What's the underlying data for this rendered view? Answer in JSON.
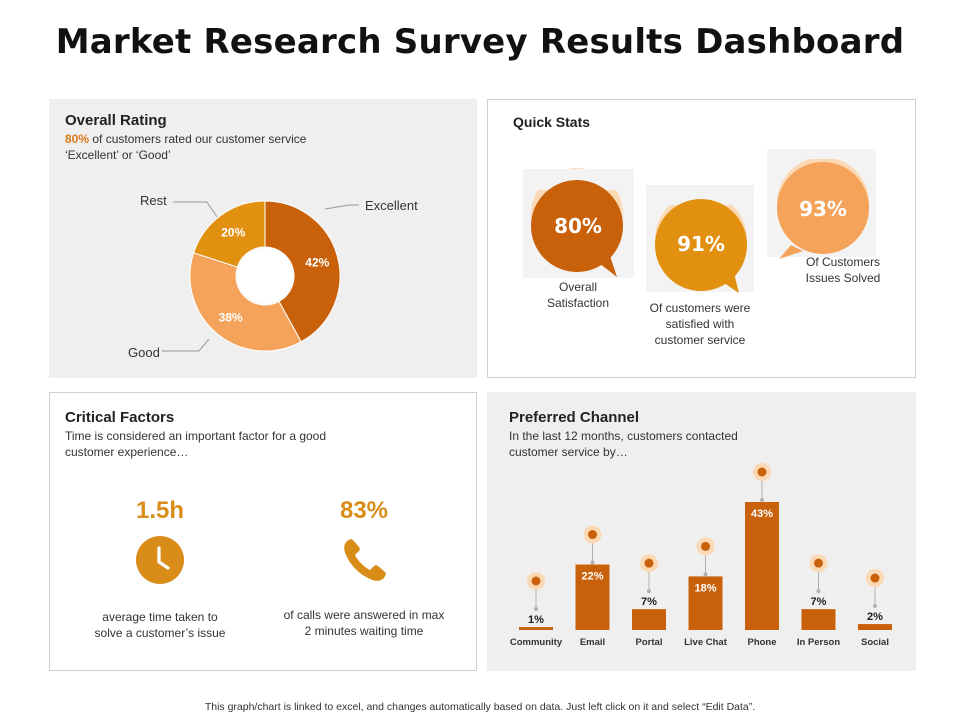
{
  "title": "Market Research Survey Results Dashboard",
  "colors": {
    "dark_orange": "#c8610a",
    "mid_orange": "#e2900f",
    "light_orange": "#f5a35a",
    "pale": "#fbd9b5",
    "accent_text": "#d97a16"
  },
  "overall_rating": {
    "title": "Overall Rating",
    "highlight": "80%",
    "subtitle_rest": " of customers rated our customer service",
    "subtitle_line2": "‘Excellent’ or ‘Good’",
    "label_rest": "Rest",
    "label_excellent": "Excellent",
    "label_good": "Good"
  },
  "quick_stats": {
    "title": "Quick Stats",
    "items": [
      {
        "value": "80%",
        "caption_lines": [
          "Overall",
          "Satisfaction"
        ]
      },
      {
        "value": "91%",
        "caption_lines": [
          "Of customers were",
          "satisfied with",
          "customer service"
        ]
      },
      {
        "value": "93%",
        "caption_lines": [
          "Of Customers",
          "Issues Solved"
        ]
      }
    ]
  },
  "critical_factors": {
    "title": "Critical Factors",
    "subtitle_lines": [
      "Time is considered an important factor for a good",
      "customer experience…"
    ],
    "factors": [
      {
        "value": "1.5h",
        "icon": "clock-icon",
        "caption_lines": [
          "average  time taken to",
          "solve  a customer’s issue"
        ]
      },
      {
        "value": "83%",
        "icon": "phone-icon",
        "caption_lines": [
          "of calls were answered in max",
          "2 minutes waiting time"
        ]
      }
    ]
  },
  "preferred_channel": {
    "title": "Preferred Channel",
    "subtitle_lines": [
      "In the last 12 months, customers contacted",
      "customer service  by…"
    ],
    "icons": [
      "people-icon",
      "email-icon",
      "portal-icon",
      "chat-icon",
      "phone-icon",
      "person-icon",
      "twitter-icon"
    ]
  },
  "chart_data": [
    {
      "type": "pie",
      "title": "Overall Rating",
      "categories": [
        "Excellent",
        "Good",
        "Rest"
      ],
      "values": [
        42,
        38,
        20
      ],
      "value_labels": [
        "42%",
        "38%",
        "20%"
      ]
    },
    {
      "type": "bar",
      "title": "Preferred Channel",
      "categories": [
        "Community",
        "Email",
        "Portal",
        "Live Chat",
        "Phone",
        "In Person",
        "Social"
      ],
      "values": [
        1,
        22,
        7,
        18,
        43,
        7,
        2
      ],
      "value_labels": [
        "1%",
        "22%",
        "7%",
        "18%",
        "43%",
        "7%",
        "2%"
      ],
      "ylim": [
        0,
        43
      ]
    }
  ],
  "footer": "This graph/chart is linked to excel, and changes automatically based on data. Just left click on it and select “Edit Data”."
}
